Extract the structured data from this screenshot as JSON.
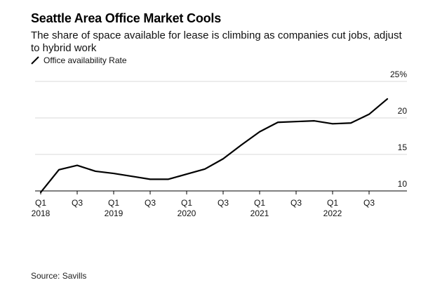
{
  "header": {
    "title": "Seattle Area Office Market Cools",
    "subtitle": "The share of space available for lease is climbing as companies cut jobs, adjust to hybrid work"
  },
  "legend": {
    "label": "Office availability Rate"
  },
  "source": "Source: Savills",
  "colors": {
    "line": "#000000",
    "grid": "#d9d9d9",
    "axis": "#000000"
  },
  "chart_data": {
    "type": "line",
    "title": "Seattle Area Office Market Cools",
    "xlabel": "",
    "ylabel": "",
    "ylim": [
      10,
      25
    ],
    "grid": true,
    "legend_position": "top-left",
    "yticks": [
      {
        "value": 25,
        "label": "25%"
      },
      {
        "value": 20,
        "label": "20"
      },
      {
        "value": 15,
        "label": "15"
      },
      {
        "value": 10,
        "label": "10"
      }
    ],
    "xticks": [
      {
        "index": 0,
        "label": "Q1",
        "year": "2018"
      },
      {
        "index": 2,
        "label": "Q3",
        "year": ""
      },
      {
        "index": 4,
        "label": "Q1",
        "year": "2019"
      },
      {
        "index": 6,
        "label": "Q3",
        "year": ""
      },
      {
        "index": 8,
        "label": "Q1",
        "year": "2020"
      },
      {
        "index": 10,
        "label": "Q3",
        "year": ""
      },
      {
        "index": 12,
        "label": "Q1",
        "year": "2021"
      },
      {
        "index": 14,
        "label": "Q3",
        "year": ""
      },
      {
        "index": 16,
        "label": "Q1",
        "year": "2022"
      },
      {
        "index": 18,
        "label": "Q3",
        "year": ""
      }
    ],
    "series": [
      {
        "name": "Office availability Rate",
        "x": [
          "Q1 2018",
          "Q2 2018",
          "Q3 2018",
          "Q4 2018",
          "Q1 2019",
          "Q2 2019",
          "Q3 2019",
          "Q4 2019",
          "Q1 2020",
          "Q2 2020",
          "Q3 2020",
          "Q4 2020",
          "Q1 2021",
          "Q2 2021",
          "Q3 2021",
          "Q4 2021",
          "Q1 2022",
          "Q2 2022",
          "Q3 2022",
          "Q4 2022"
        ],
        "values": [
          9.8,
          12.9,
          13.5,
          12.7,
          12.4,
          12.0,
          11.6,
          11.6,
          12.3,
          13.0,
          14.4,
          16.3,
          18.1,
          19.4,
          19.5,
          19.6,
          19.2,
          19.3,
          20.5,
          22.6
        ]
      }
    ]
  }
}
